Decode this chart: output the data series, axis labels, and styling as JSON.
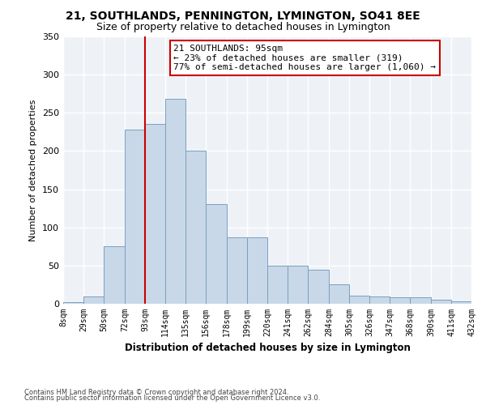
{
  "title": "21, SOUTHLANDS, PENNINGTON, LYMINGTON, SO41 8EE",
  "subtitle": "Size of property relative to detached houses in Lymington",
  "xlabel": "Distribution of detached houses by size in Lymington",
  "ylabel": "Number of detached properties",
  "bar_color": "#c8d8e8",
  "bar_edge_color": "#7aa0c0",
  "vline_x": 93,
  "vline_color": "#cc0000",
  "annotation_text": "21 SOUTHLANDS: 95sqm\n← 23% of detached houses are smaller (319)\n77% of semi-detached houses are larger (1,060) →",
  "annotation_box_color": "#ffffff",
  "annotation_box_edge": "#cc0000",
  "bin_edges": [
    8,
    29,
    50,
    72,
    93,
    114,
    135,
    156,
    178,
    199,
    220,
    241,
    262,
    284,
    305,
    326,
    347,
    368,
    390,
    411,
    432
  ],
  "bin_labels": [
    "8sqm",
    "29sqm",
    "50sqm",
    "72sqm",
    "93sqm",
    "114sqm",
    "135sqm",
    "156sqm",
    "178sqm",
    "199sqm",
    "220sqm",
    "241sqm",
    "262sqm",
    "284sqm",
    "305sqm",
    "326sqm",
    "347sqm",
    "368sqm",
    "390sqm",
    "411sqm",
    "432sqm"
  ],
  "bar_heights": [
    2,
    10,
    75,
    228,
    235,
    268,
    200,
    130,
    87,
    87,
    50,
    50,
    45,
    25,
    11,
    10,
    9,
    8,
    5,
    3
  ],
  "ylim": [
    0,
    350
  ],
  "yticks": [
    0,
    50,
    100,
    150,
    200,
    250,
    300,
    350
  ],
  "bg_color": "#eef2f7",
  "footer1": "Contains HM Land Registry data © Crown copyright and database right 2024.",
  "footer2": "Contains public sector information licensed under the Open Government Licence v3.0.",
  "title_fontsize": 10,
  "subtitle_fontsize": 9
}
